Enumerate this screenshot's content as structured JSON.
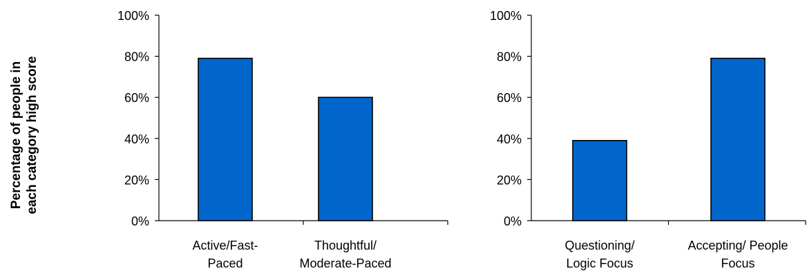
{
  "ylabel_lines": [
    "Percentage of people in",
    "each category high score"
  ],
  "chart_data": [
    {
      "type": "bar",
      "title": "",
      "xlabel": "",
      "ylabel": "Percentage of people in each category high score",
      "ylim": [
        0,
        100
      ],
      "yticks": [
        "0%",
        "20%",
        "40%",
        "60%",
        "80%",
        "100%"
      ],
      "categories": [
        [
          "Active/Fast-",
          "Paced"
        ],
        [
          "Thoughtful/",
          "Moderate-Paced"
        ]
      ],
      "values": [
        79,
        60
      ],
      "bar_color": "#0066CC",
      "grid": false,
      "legend": "none"
    },
    {
      "type": "bar",
      "title": "",
      "xlabel": "",
      "ylabel": "",
      "ylim": [
        0,
        100
      ],
      "yticks": [
        "0%",
        "20%",
        "40%",
        "60%",
        "80%",
        "100%"
      ],
      "categories": [
        [
          "Questioning/",
          "Logic Focus"
        ],
        [
          "Accepting/ People",
          "Focus"
        ]
      ],
      "values": [
        39,
        79
      ],
      "bar_color": "#0066CC",
      "grid": false,
      "legend": "none"
    }
  ]
}
